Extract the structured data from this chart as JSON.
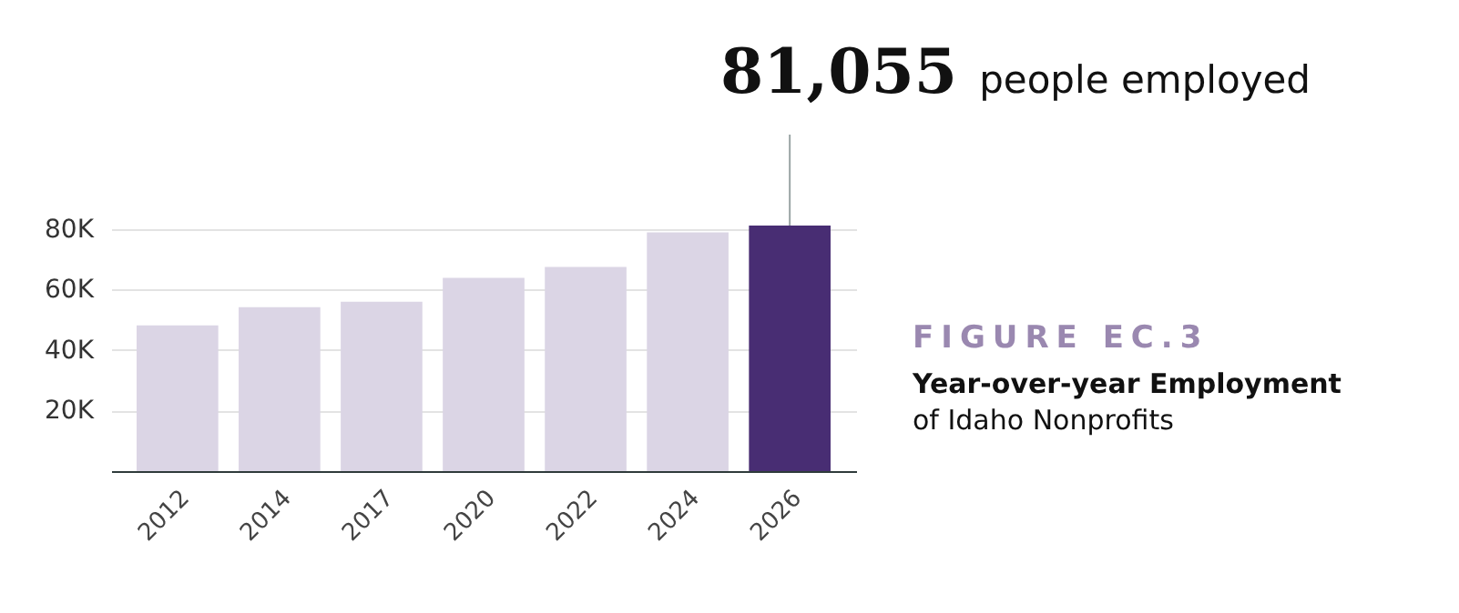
{
  "chart_data": {
    "type": "bar",
    "title": "FIGURE EC.3",
    "subtitle": "Year-over-year Employment",
    "categories": [
      "2012",
      "2014",
      "2017",
      "2020",
      "2022",
      "2024",
      "2026"
    ],
    "values": [
      48100,
      54100,
      55900,
      63800,
      67400,
      78800,
      81055
    ],
    "colors": [
      "#dbd5e5",
      "#dbd5e5",
      "#dbd5e5",
      "#dbd5e5",
      "#dbd5e5",
      "#dbd5e5",
      "#482d73"
    ],
    "yticks": [
      {
        "value": 20000,
        "label": "20K"
      },
      {
        "value": 40000,
        "label": "40K"
      },
      {
        "value": 60000,
        "label": "60K"
      },
      {
        "value": 80000,
        "label": "80K"
      }
    ],
    "ylim": [
      0,
      81055
    ],
    "grid": "y",
    "annotations": [
      {
        "text": "81,055",
        "x": "2026",
        "y": 81055
      },
      "people employed",
      "of Idaho Nonprofits"
    ]
  }
}
